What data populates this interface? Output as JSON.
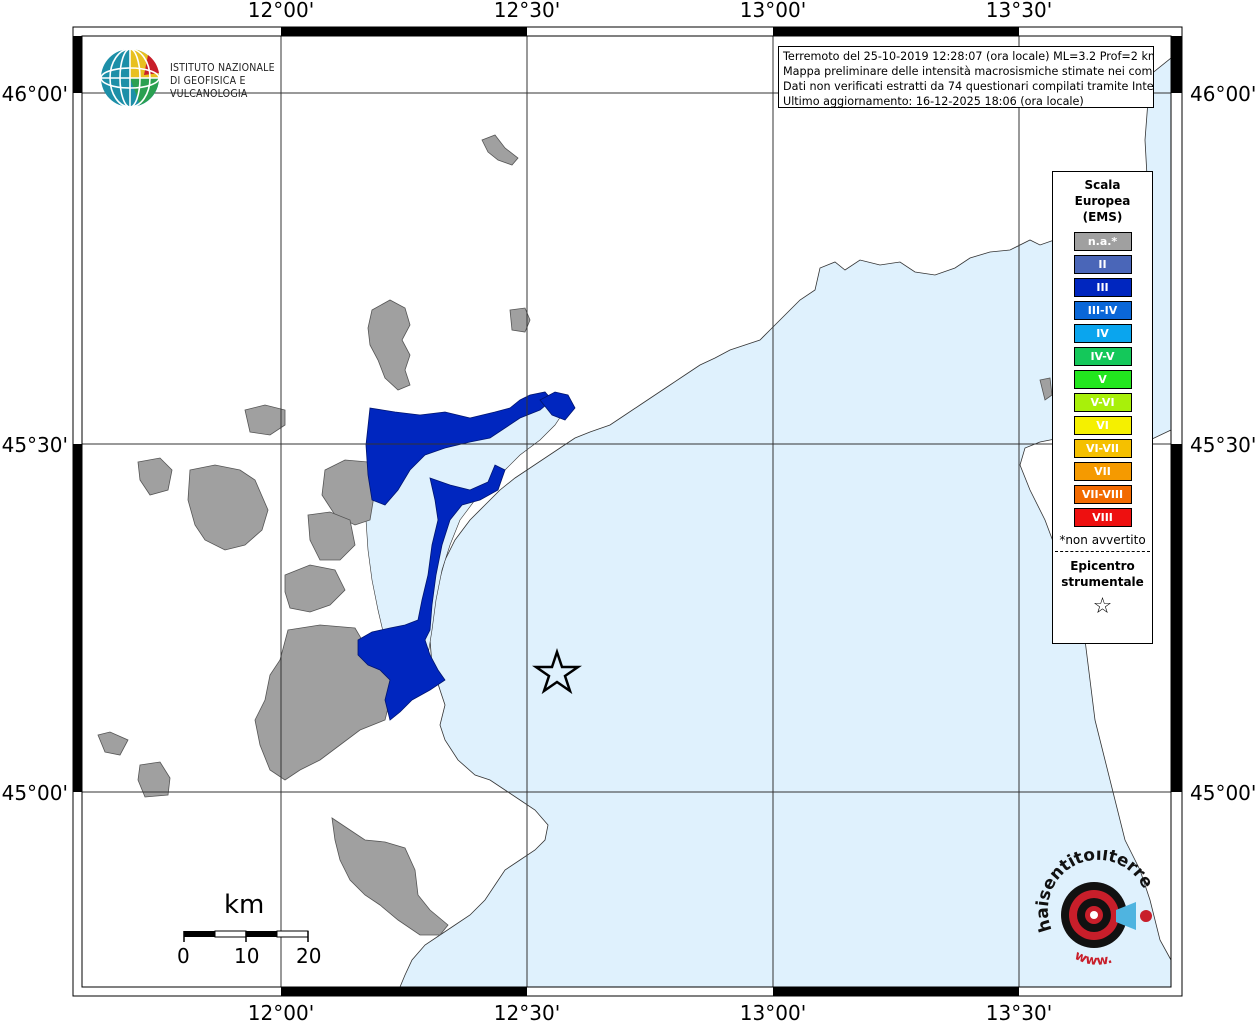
{
  "map": {
    "lon_labels": [
      "12°00'",
      "12°30'",
      "13°00'",
      "13°30'"
    ],
    "lat_labels": [
      "46°00'",
      "45°30'",
      "45°00'"
    ],
    "colors": {
      "sea": "#dff1fd",
      "land": "#ffffff",
      "not_felt": "#a0a0a0",
      "intensity_III": "#0026bf",
      "frame": "#000000"
    }
  },
  "institute": {
    "line1": "ISTITUTO NAZIONALE",
    "line2": "DI GEOFISICA E VULCANOLOGIA",
    "icon": "globe-icon"
  },
  "info": {
    "line1": "Terremoto del 25-10-2019 12:28:07 (ora locale) ML=3.2 Prof=2 km",
    "line2": "Mappa preliminare delle intensità macrosismiche stimate nei comuni",
    "line3": "Dati non verificati estratti da 74 questionari compilati tramite Internet.",
    "line4": "Ultimo aggiornamento: 16-12-2025 18:06 (ora locale)"
  },
  "legend": {
    "title1": "Scala",
    "title2": "Europea",
    "title3": "(EMS)",
    "items": [
      {
        "label": "n.a.*",
        "color": "#a0a0a0"
      },
      {
        "label": "II",
        "color": "#4a66b8"
      },
      {
        "label": "III",
        "color": "#0026bf"
      },
      {
        "label": "III-IV",
        "color": "#0a67d8"
      },
      {
        "label": "IV",
        "color": "#0aa5ee"
      },
      {
        "label": "IV-V",
        "color": "#14c85a"
      },
      {
        "label": "V",
        "color": "#22e61e"
      },
      {
        "label": "V-VI",
        "color": "#a8f00a"
      },
      {
        "label": "VI",
        "color": "#f5f000"
      },
      {
        "label": "VI-VII",
        "color": "#f5c000"
      },
      {
        "label": "VII",
        "color": "#f59a00"
      },
      {
        "label": "VII-VIII",
        "color": "#f26a00"
      },
      {
        "label": "VIII",
        "color": "#ee1010"
      }
    ],
    "note": "*non avvertito",
    "epicenter1": "Epicentro",
    "epicenter2": "strumentale",
    "epicenter_icon": "star-icon"
  },
  "scale_bar": {
    "unit": "km",
    "labels": [
      "0",
      "10",
      "20"
    ]
  },
  "haisentito": {
    "text_top": "haisentitoilterremoto.it",
    "text_bottom": "www.",
    "icon": "target-icon"
  }
}
